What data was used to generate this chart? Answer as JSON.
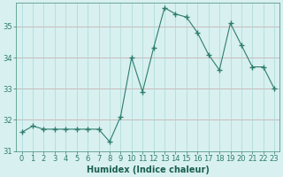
{
  "x": [
    0,
    1,
    2,
    3,
    4,
    5,
    6,
    7,
    8,
    9,
    10,
    11,
    12,
    13,
    14,
    15,
    16,
    17,
    18,
    19,
    20,
    21,
    22,
    23
  ],
  "y": [
    31.6,
    31.8,
    31.7,
    31.7,
    31.7,
    31.7,
    31.7,
    31.7,
    31.3,
    32.1,
    34.0,
    32.9,
    34.3,
    35.6,
    35.4,
    35.3,
    34.8,
    34.1,
    33.6,
    35.1,
    34.4,
    33.7,
    33.7,
    33.0
  ],
  "line_color": "#2e7d6e",
  "marker": "+",
  "marker_size": 4,
  "bg_color": "#d8f0f0",
  "grid_h_color": "#c8b0b0",
  "grid_v_color": "#a8d8d8",
  "xlabel": "Humidex (Indice chaleur)",
  "xlim": [
    -0.5,
    23.5
  ],
  "ylim": [
    31.0,
    35.75
  ],
  "yticks": [
    31,
    32,
    33,
    34,
    35
  ],
  "tick_color": "#2e7d6e",
  "label_color": "#1a5f50",
  "spine_color": "#5a9a8a",
  "axis_bg": "#d8f0f0",
  "xlabel_fontsize": 7,
  "ytick_fontsize": 6,
  "xtick_fontsize": 5
}
